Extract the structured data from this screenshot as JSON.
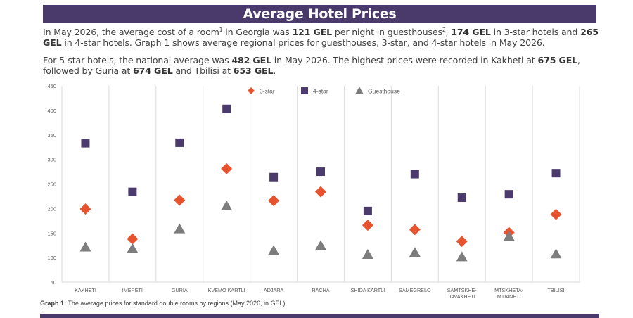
{
  "header": {
    "title": "Average Hotel Prices"
  },
  "intro": {
    "p1_a": "In May 2026, the average cost of a room",
    "p1_sup1": "1",
    "p1_b": " in Georgia was ",
    "p1_v1": "121 GEL",
    "p1_c": " per night in guesthouses",
    "p1_sup2": "2",
    "p1_d": ", ",
    "p1_v2": "174 GEL",
    "p1_e": " in 3-star hotels and ",
    "p1_v3": "265 GEL",
    "p1_f": " in 4-star hotels. Graph 1 shows average regional prices for guesthouses, 3-star, and 4-star hotels in May 2026.",
    "p2_a": "For 5-star hotels, the national average was ",
    "p2_v1": "482 GEL",
    "p2_b": " in May 2026. The highest prices were recorded in Kakheti at ",
    "p2_v2": "675 GEL",
    "p2_c": ", followed by Guria at ",
    "p2_v3": "674 GEL",
    "p2_d": " and Tbilisi at ",
    "p2_v4": "653 GEL",
    "p2_e": "."
  },
  "caption": {
    "label": "Graph 1:",
    "text": " The average prices for standard double rooms by regions (May 2026, in GEL)"
  },
  "chart_data": {
    "type": "scatter",
    "categories": [
      [
        "KAKHETI"
      ],
      [
        "IMERETI"
      ],
      [
        "GURIA"
      ],
      [
        "KVEMO KARTLI"
      ],
      [
        "ADJARA"
      ],
      [
        "RACHA"
      ],
      [
        "SHIDA KARTLI"
      ],
      [
        "SAMEGRELO"
      ],
      [
        "SAMTSKHE-",
        "JAVAKHETI"
      ],
      [
        "MTSKHETA-",
        "MTIANETI"
      ],
      [
        "TBILISI"
      ]
    ],
    "ylim": [
      50,
      450
    ],
    "yticks": [
      50,
      100,
      150,
      200,
      250,
      300,
      350,
      400,
      450
    ],
    "legend_position": "top",
    "series": [
      {
        "name": "3-star",
        "marker": "diamond",
        "color": "#e8532f",
        "values": [
          199,
          138,
          217,
          281,
          216,
          234,
          166,
          157,
          133,
          151,
          188
        ]
      },
      {
        "name": "4-star",
        "marker": "square",
        "color": "#4b3b6c",
        "values": [
          333,
          234,
          334,
          403,
          264,
          275,
          195,
          270,
          222,
          229,
          272
        ]
      },
      {
        "name": "Guesthouse",
        "marker": "triangle",
        "color": "#7d7d7d",
        "values": [
          121,
          118,
          158,
          205,
          114,
          124,
          106,
          110,
          101,
          143,
          107
        ]
      }
    ]
  }
}
